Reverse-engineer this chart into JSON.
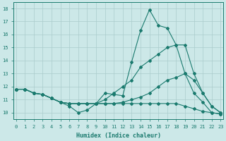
{
  "xlabel": "Humidex (Indice chaleur)",
  "xlim": [
    -0.3,
    23.3
  ],
  "ylim": [
    9.5,
    18.5
  ],
  "yticks": [
    10,
    11,
    12,
    13,
    14,
    15,
    16,
    17,
    18
  ],
  "xticks": [
    0,
    1,
    2,
    3,
    4,
    5,
    6,
    7,
    8,
    9,
    10,
    11,
    12,
    13,
    14,
    15,
    16,
    17,
    18,
    19,
    20,
    21,
    22,
    23
  ],
  "bg_color": "#cce8e8",
  "line_color": "#1a7a6e",
  "grid_color": "#aacccc",
  "series": [
    [
      11.8,
      11.8,
      11.5,
      11.4,
      11.1,
      10.8,
      10.5,
      10.0,
      10.2,
      10.7,
      11.5,
      11.4,
      11.3,
      13.9,
      16.3,
      17.9,
      16.7,
      16.5,
      15.2,
      13.0,
      11.5,
      10.8,
      10.0,
      9.9
    ],
    [
      11.8,
      11.8,
      11.5,
      11.4,
      11.1,
      10.8,
      10.7,
      10.7,
      10.7,
      10.7,
      11.0,
      11.5,
      12.0,
      12.5,
      13.5,
      14.0,
      14.5,
      15.0,
      15.2,
      15.2,
      13.0,
      11.5,
      10.5,
      10.0
    ],
    [
      11.8,
      11.8,
      11.5,
      11.4,
      11.1,
      10.8,
      10.7,
      10.7,
      10.7,
      10.7,
      10.7,
      10.7,
      10.8,
      11.0,
      11.2,
      11.5,
      12.0,
      12.5,
      12.7,
      13.0,
      12.5,
      11.5,
      10.5,
      10.0
    ],
    [
      11.8,
      11.8,
      11.5,
      11.4,
      11.1,
      10.8,
      10.7,
      10.7,
      10.7,
      10.7,
      10.7,
      10.7,
      10.7,
      10.7,
      10.7,
      10.7,
      10.7,
      10.7,
      10.7,
      10.5,
      10.3,
      10.1,
      10.0,
      9.9
    ]
  ]
}
